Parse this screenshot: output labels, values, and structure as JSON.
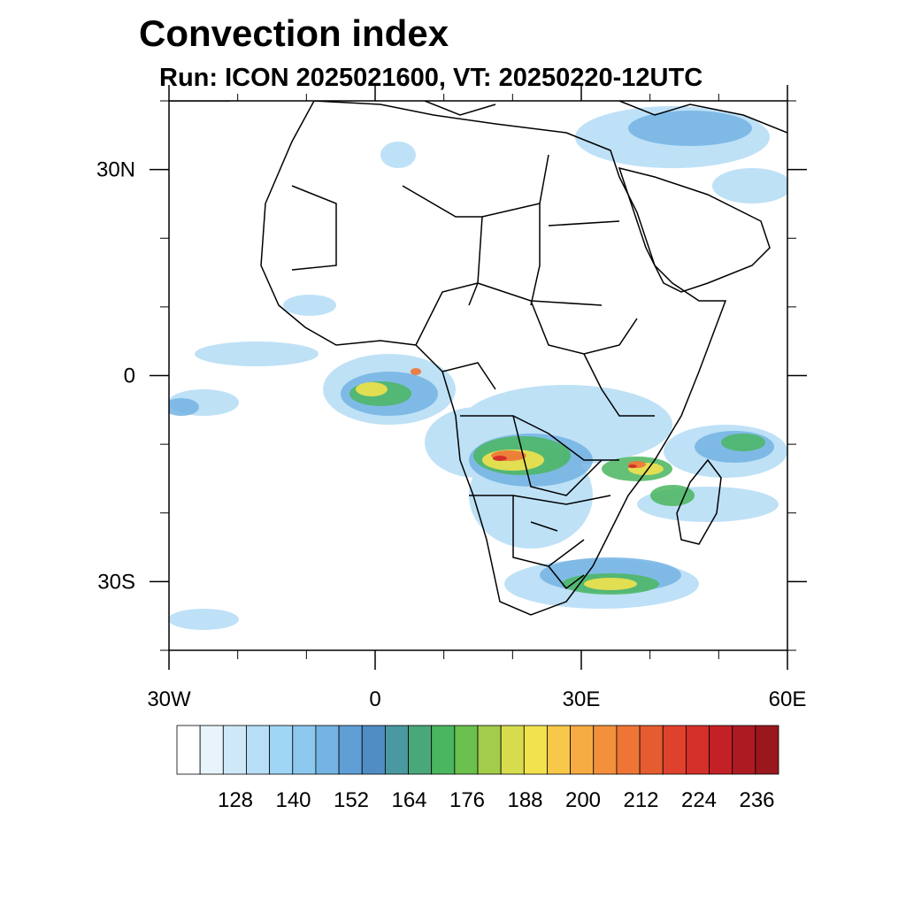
{
  "title": "Convection index",
  "subtitle": "Run: ICON 2025021600,  VT: 20250220-12UTC",
  "map": {
    "lon_range": [
      -30,
      60
    ],
    "lat_range": [
      -40,
      40
    ],
    "lat_ticks": [
      {
        "value": 30,
        "label": "30N"
      },
      {
        "value": 0,
        "label": "0"
      },
      {
        "value": -30,
        "label": "30S"
      }
    ],
    "lon_ticks": [
      {
        "value": -30,
        "label": "30W"
      },
      {
        "value": 0,
        "label": "0"
      },
      {
        "value": 30,
        "label": "30E"
      },
      {
        "value": 60,
        "label": "60E"
      }
    ]
  },
  "colorbar": {
    "labels": [
      "128",
      "140",
      "152",
      "164",
      "176",
      "188",
      "200",
      "212",
      "224",
      "236"
    ],
    "colors": [
      "#ffffff",
      "#e8f4fb",
      "#cfe8f7",
      "#b7def6",
      "#a0d6f5",
      "#8cc7ee",
      "#74b3e3",
      "#5f9fd6",
      "#4f8dc4",
      "#4a98a0",
      "#4aa779",
      "#4bb660",
      "#6cc04e",
      "#a3cc4a",
      "#d6dc4d",
      "#f2e24e",
      "#f8c84a",
      "#f6ac42",
      "#f3903c",
      "#ee7536",
      "#e65c31",
      "#df422c",
      "#d52f2a",
      "#c42126",
      "#ad1a22",
      "#9a171d"
    ]
  }
}
